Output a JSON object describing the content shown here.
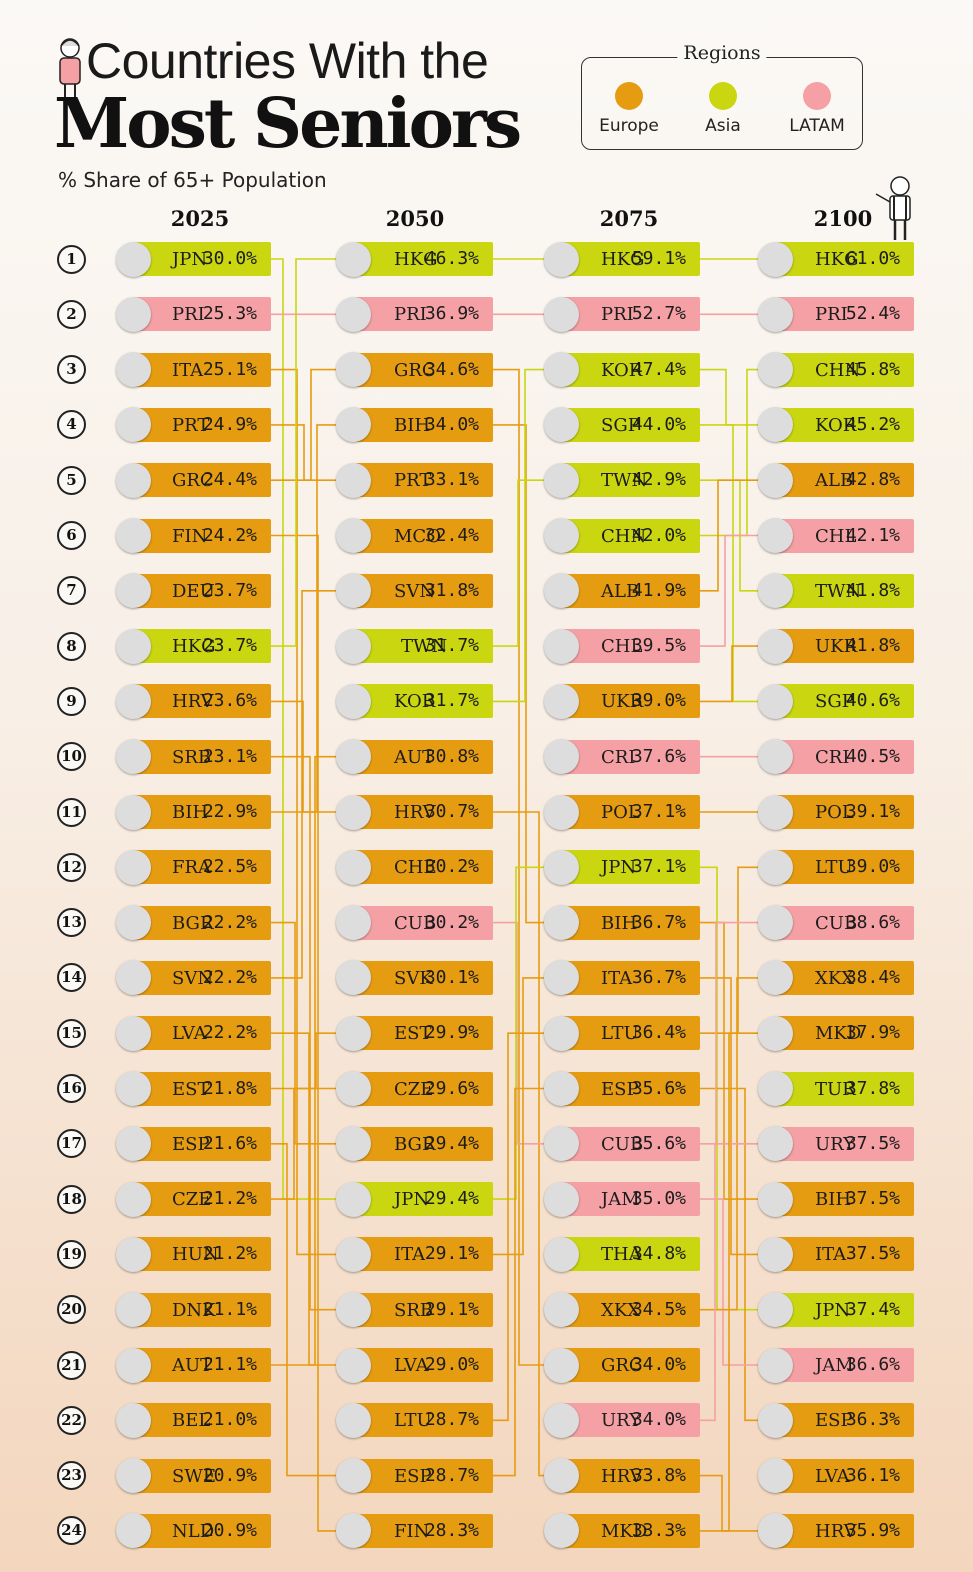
{
  "header": {
    "title_line1": "Countries With the",
    "title_line2": "Most Seniors",
    "subtitle": "% Share of 65+ Population"
  },
  "legend": {
    "title": "Regions",
    "items": [
      {
        "label": "Europe",
        "color": "#e69c11"
      },
      {
        "label": "Asia",
        "color": "#c9d610"
      },
      {
        "label": "LATAM",
        "color": "#f4a0a4"
      }
    ]
  },
  "region_colors": {
    "Europe": "#e69c11",
    "Asia": "#c9d610",
    "LATAM": "#f4a0a4"
  },
  "chart_data": {
    "type": "table",
    "title": "Countries With the Most Seniors",
    "subtitle": "% Share of 65+ Population",
    "years": [
      "2025",
      "2050",
      "2075",
      "2100"
    ],
    "ranks": [
      "1",
      "2",
      "3",
      "4",
      "5",
      "6",
      "7",
      "8",
      "9",
      "10",
      "11",
      "12",
      "13",
      "14",
      "15",
      "16",
      "17",
      "18",
      "19",
      "20",
      "21",
      "22",
      "23",
      "24"
    ],
    "columns": [
      [
        {
          "code": "JPN",
          "value": "30.0%",
          "region": "Asia"
        },
        {
          "code": "PRI",
          "value": "25.3%",
          "region": "LATAM"
        },
        {
          "code": "ITA",
          "value": "25.1%",
          "region": "Europe"
        },
        {
          "code": "PRT",
          "value": "24.9%",
          "region": "Europe"
        },
        {
          "code": "GRC",
          "value": "24.4%",
          "region": "Europe"
        },
        {
          "code": "FIN",
          "value": "24.2%",
          "region": "Europe"
        },
        {
          "code": "DEU",
          "value": "23.7%",
          "region": "Europe"
        },
        {
          "code": "HKG",
          "value": "23.7%",
          "region": "Asia"
        },
        {
          "code": "HRV",
          "value": "23.6%",
          "region": "Europe"
        },
        {
          "code": "SRB",
          "value": "23.1%",
          "region": "Europe"
        },
        {
          "code": "BIH",
          "value": "22.9%",
          "region": "Europe"
        },
        {
          "code": "FRA",
          "value": "22.5%",
          "region": "Europe"
        },
        {
          "code": "BGR",
          "value": "22.2%",
          "region": "Europe"
        },
        {
          "code": "SVN",
          "value": "22.2%",
          "region": "Europe"
        },
        {
          "code": "LVA",
          "value": "22.2%",
          "region": "Europe"
        },
        {
          "code": "EST",
          "value": "21.8%",
          "region": "Europe"
        },
        {
          "code": "ESP",
          "value": "21.6%",
          "region": "Europe"
        },
        {
          "code": "CZE",
          "value": "21.2%",
          "region": "Europe"
        },
        {
          "code": "HUN",
          "value": "21.2%",
          "region": "Europe"
        },
        {
          "code": "DNK",
          "value": "21.1%",
          "region": "Europe"
        },
        {
          "code": "AUT",
          "value": "21.1%",
          "region": "Europe"
        },
        {
          "code": "BEL",
          "value": "21.0%",
          "region": "Europe"
        },
        {
          "code": "SWE",
          "value": "20.9%",
          "region": "Europe"
        },
        {
          "code": "NLD",
          "value": "20.9%",
          "region": "Europe"
        }
      ],
      [
        {
          "code": "HKG",
          "value": "46.3%",
          "region": "Asia"
        },
        {
          "code": "PRI",
          "value": "36.9%",
          "region": "LATAM"
        },
        {
          "code": "GRC",
          "value": "34.6%",
          "region": "Europe"
        },
        {
          "code": "BIH",
          "value": "34.0%",
          "region": "Europe"
        },
        {
          "code": "PRT",
          "value": "33.1%",
          "region": "Europe"
        },
        {
          "code": "MCO",
          "value": "32.4%",
          "region": "Europe"
        },
        {
          "code": "SVN",
          "value": "31.8%",
          "region": "Europe"
        },
        {
          "code": "TWN",
          "value": "31.7%",
          "region": "Asia"
        },
        {
          "code": "KOR",
          "value": "31.7%",
          "region": "Asia"
        },
        {
          "code": "AUT",
          "value": "30.8%",
          "region": "Europe"
        },
        {
          "code": "HRV",
          "value": "30.7%",
          "region": "Europe"
        },
        {
          "code": "CHE",
          "value": "30.2%",
          "region": "Europe"
        },
        {
          "code": "CUB",
          "value": "30.2%",
          "region": "LATAM"
        },
        {
          "code": "SVK",
          "value": "30.1%",
          "region": "Europe"
        },
        {
          "code": "EST",
          "value": "29.9%",
          "region": "Europe"
        },
        {
          "code": "CZE",
          "value": "29.6%",
          "region": "Europe"
        },
        {
          "code": "BGR",
          "value": "29.4%",
          "region": "Europe"
        },
        {
          "code": "JPN",
          "value": "29.4%",
          "region": "Asia"
        },
        {
          "code": "ITA",
          "value": "29.1%",
          "region": "Europe"
        },
        {
          "code": "SRB",
          "value": "29.1%",
          "region": "Europe"
        },
        {
          "code": "LVA",
          "value": "29.0%",
          "region": "Europe"
        },
        {
          "code": "LTU",
          "value": "28.7%",
          "region": "Europe"
        },
        {
          "code": "ESP",
          "value": "28.7%",
          "region": "Europe"
        },
        {
          "code": "FIN",
          "value": "28.3%",
          "region": "Europe"
        }
      ],
      [
        {
          "code": "HKG",
          "value": "59.1%",
          "region": "Asia"
        },
        {
          "code": "PRI",
          "value": "52.7%",
          "region": "LATAM"
        },
        {
          "code": "KOR",
          "value": "47.4%",
          "region": "Asia"
        },
        {
          "code": "SGP",
          "value": "44.0%",
          "region": "Asia"
        },
        {
          "code": "TWN",
          "value": "42.9%",
          "region": "Asia"
        },
        {
          "code": "CHN",
          "value": "42.0%",
          "region": "Asia"
        },
        {
          "code": "ALB",
          "value": "41.9%",
          "region": "Europe"
        },
        {
          "code": "CHL",
          "value": "39.5%",
          "region": "LATAM"
        },
        {
          "code": "UKR",
          "value": "39.0%",
          "region": "Europe"
        },
        {
          "code": "CRI",
          "value": "37.6%",
          "region": "LATAM"
        },
        {
          "code": "POL",
          "value": "37.1%",
          "region": "Europe"
        },
        {
          "code": "JPN",
          "value": "37.1%",
          "region": "Asia"
        },
        {
          "code": "BIH",
          "value": "36.7%",
          "region": "Europe"
        },
        {
          "code": "ITA",
          "value": "36.7%",
          "region": "Europe"
        },
        {
          "code": "LTU",
          "value": "36.4%",
          "region": "Europe"
        },
        {
          "code": "ESP",
          "value": "35.6%",
          "region": "Europe"
        },
        {
          "code": "CUB",
          "value": "35.6%",
          "region": "LATAM"
        },
        {
          "code": "JAM",
          "value": "35.0%",
          "region": "LATAM"
        },
        {
          "code": "THA",
          "value": "34.8%",
          "region": "Asia"
        },
        {
          "code": "XKX",
          "value": "34.5%",
          "region": "Europe"
        },
        {
          "code": "GRC",
          "value": "34.0%",
          "region": "Europe"
        },
        {
          "code": "URY",
          "value": "34.0%",
          "region": "LATAM"
        },
        {
          "code": "HRV",
          "value": "33.8%",
          "region": "Europe"
        },
        {
          "code": "MKD",
          "value": "33.3%",
          "region": "Europe"
        }
      ],
      [
        {
          "code": "HKG",
          "value": "61.0%",
          "region": "Asia"
        },
        {
          "code": "PRI",
          "value": "52.4%",
          "region": "LATAM"
        },
        {
          "code": "CHN",
          "value": "45.8%",
          "region": "Asia"
        },
        {
          "code": "KOR",
          "value": "45.2%",
          "region": "Asia"
        },
        {
          "code": "ALB",
          "value": "42.8%",
          "region": "Europe"
        },
        {
          "code": "CHL",
          "value": "42.1%",
          "region": "LATAM"
        },
        {
          "code": "TWN",
          "value": "41.8%",
          "region": "Asia"
        },
        {
          "code": "UKR",
          "value": "41.8%",
          "region": "Europe"
        },
        {
          "code": "SGP",
          "value": "40.6%",
          "region": "Asia"
        },
        {
          "code": "CRI",
          "value": "40.5%",
          "region": "LATAM"
        },
        {
          "code": "POL",
          "value": "39.1%",
          "region": "Europe"
        },
        {
          "code": "LTU",
          "value": "39.0%",
          "region": "Europe"
        },
        {
          "code": "CUB",
          "value": "38.6%",
          "region": "LATAM"
        },
        {
          "code": "XKX",
          "value": "38.4%",
          "region": "Europe"
        },
        {
          "code": "MKD",
          "value": "37.9%",
          "region": "Europe"
        },
        {
          "code": "TUR",
          "value": "37.8%",
          "region": "Asia"
        },
        {
          "code": "URY",
          "value": "37.5%",
          "region": "LATAM"
        },
        {
          "code": "BIH",
          "value": "37.5%",
          "region": "Europe"
        },
        {
          "code": "ITA",
          "value": "37.5%",
          "region": "Europe"
        },
        {
          "code": "JPN",
          "value": "37.4%",
          "region": "Asia"
        },
        {
          "code": "JAM",
          "value": "36.6%",
          "region": "LATAM"
        },
        {
          "code": "ESP",
          "value": "36.3%",
          "region": "Europe"
        },
        {
          "code": "LVA",
          "value": "36.1%",
          "region": "Europe"
        },
        {
          "code": "HRV",
          "value": "35.9%",
          "region": "Europe"
        }
      ]
    ]
  }
}
